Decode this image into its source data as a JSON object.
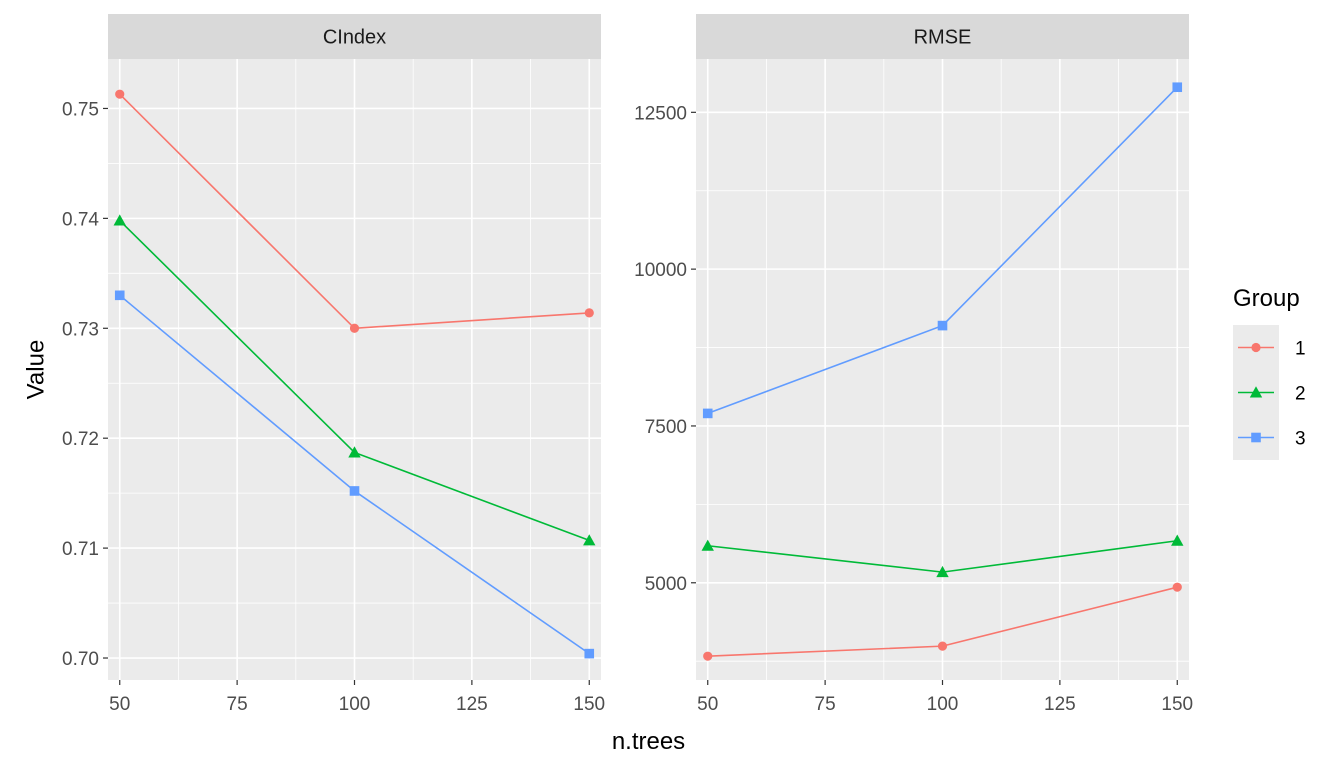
{
  "chart_data": {
    "type": "line",
    "xlabel": "n.trees",
    "ylabel": "Value",
    "x": [
      50,
      100,
      150
    ],
    "x_ticks": [
      "50",
      "75",
      "100",
      "125",
      "150"
    ],
    "legend": {
      "title": "Group",
      "placement": "right",
      "entries": [
        "1",
        "2",
        "3"
      ]
    },
    "series_colors": [
      "#F8766D",
      "#00BA38",
      "#619CFF"
    ],
    "series_shapes": [
      "circle",
      "triangle",
      "square"
    ],
    "panels": [
      {
        "strip": "CIndex",
        "xlim": [
          47.5,
          152.5
        ],
        "ylim": [
          0.698,
          0.7545
        ],
        "y_ticks": [
          "0.70",
          "0.71",
          "0.72",
          "0.73",
          "0.74",
          "0.75"
        ],
        "grid": true,
        "series": [
          {
            "name": "1",
            "values": [
              0.7513,
              0.73,
              0.7314
            ]
          },
          {
            "name": "2",
            "values": [
              0.7398,
              0.7187,
              0.7107
            ]
          },
          {
            "name": "3",
            "values": [
              0.733,
              0.7152,
              0.7004
            ]
          }
        ]
      },
      {
        "strip": "RMSE",
        "xlim": [
          47.5,
          152.5
        ],
        "ylim": [
          3450,
          13350
        ],
        "y_ticks": [
          "5000",
          "7500",
          "10000",
          "12500"
        ],
        "grid": true,
        "series": [
          {
            "name": "1",
            "values": [
              3830,
              3990,
              4930
            ]
          },
          {
            "name": "2",
            "values": [
              5590,
              5170,
              5670
            ]
          },
          {
            "name": "3",
            "values": [
              7700,
              9100,
              12900
            ]
          }
        ]
      }
    ]
  }
}
